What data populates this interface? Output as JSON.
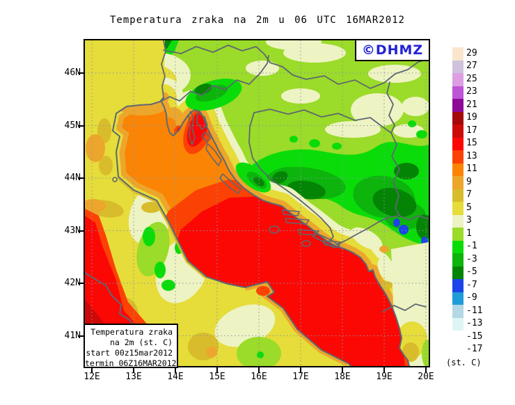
{
  "title": "Temperatura zraka na 2m u 06 UTC 16MAR2012",
  "watermark": {
    "text": "©DHMZ",
    "color": "#2222d4"
  },
  "info_box": {
    "lines": [
      "Temperatura zraka",
      "na 2m (st. C)",
      "start 00z15mar2012",
      "termin 06Z16MAR2012"
    ]
  },
  "axes": {
    "lat_labels": [
      "46N",
      "45N",
      "44N",
      "43N",
      "42N",
      "41N"
    ],
    "lon_labels": [
      "12E",
      "13E",
      "14E",
      "15E",
      "16E",
      "17E",
      "18E",
      "19E",
      "20E"
    ]
  },
  "scale": {
    "unit": "(st. C)",
    "labels": [
      "29",
      "27",
      "25",
      "23",
      "21",
      "19",
      "17",
      "15",
      "13",
      "11",
      "9",
      "7",
      "5",
      "3",
      "1",
      "-1",
      "-3",
      "-5",
      "-7",
      "-9",
      "-11",
      "-13",
      "-15",
      "-17"
    ],
    "colors": [
      "#fae6ce",
      "#cfc2dc",
      "#dd9fe2",
      "#be54d6",
      "#8e0a96",
      "#a40808",
      "#cc0a08",
      "#fb0804",
      "#fb4204",
      "#fb8405",
      "#eca62c",
      "#d8bc2c",
      "#e6dc3a",
      "#edf3c2",
      "#9bdb29",
      "#0adc0a",
      "#0cb40c",
      "#048404",
      "#1c44e8",
      "#209cd8",
      "#b4d8e4",
      "#dff5f5",
      "#ffffff"
    ]
  },
  "map": {
    "line_color": "#5e6870",
    "grid_color": "#8895a5",
    "sea_base_color": "#fb8405",
    "land_base_color": "#9bdb29"
  }
}
